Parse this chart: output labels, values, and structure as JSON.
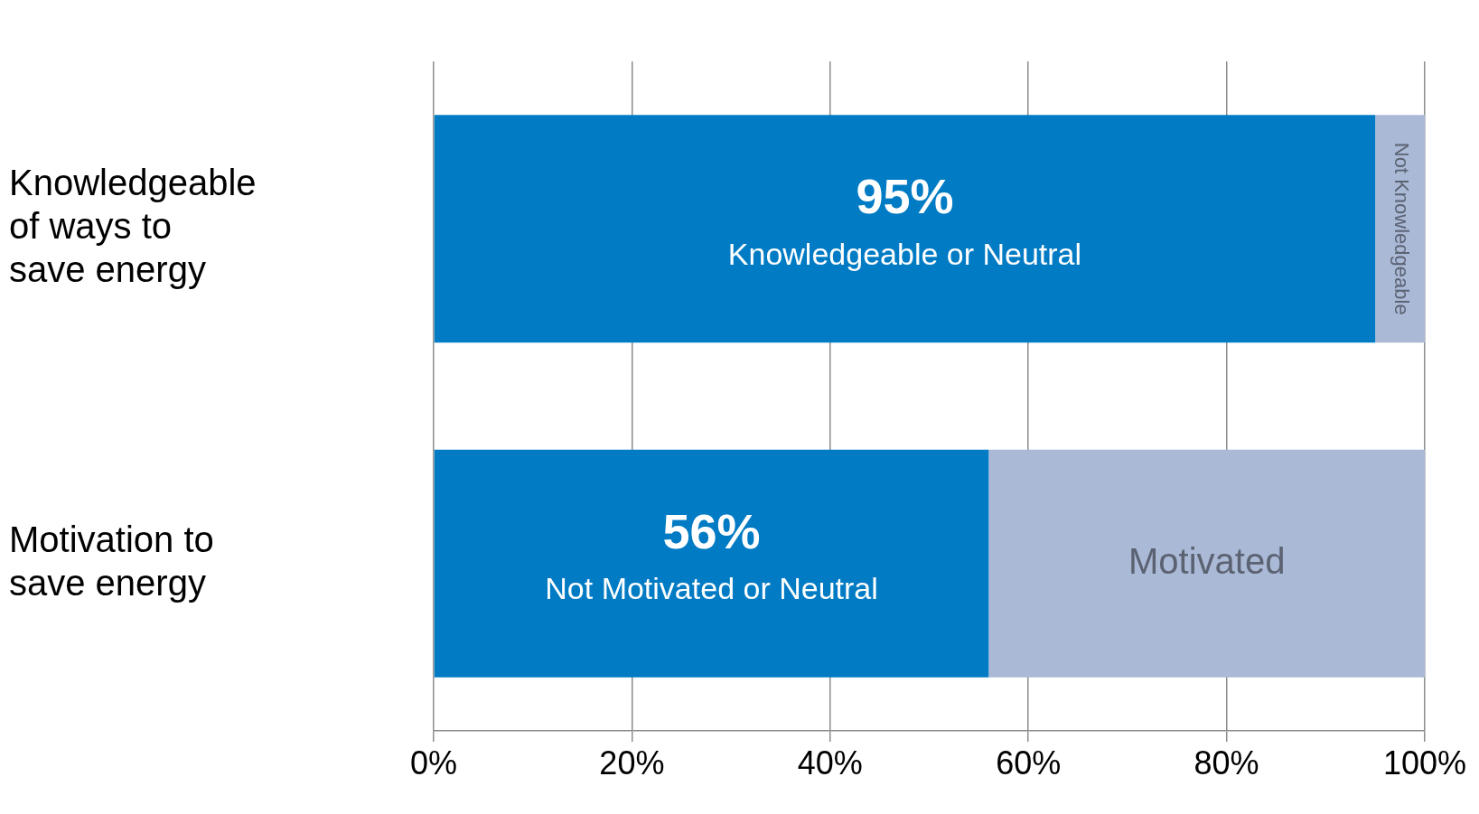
{
  "chart_data": {
    "type": "bar",
    "orientation": "horizontal",
    "stacked": true,
    "categories": [
      "Knowledgeable of ways to save energy",
      "Motivation to save energy"
    ],
    "series": [
      {
        "color": "#007bc4",
        "values": [
          95,
          56
        ],
        "value_labels": [
          "95%",
          "56%"
        ]
      },
      {
        "color": "#aab9d6",
        "values": [
          5,
          44
        ]
      }
    ],
    "annotations": [
      "Knowledgeable or Neutral",
      "Not Knowledgeable",
      "Not Motivated or Neutral",
      "Motivated"
    ],
    "xlim": [
      0,
      100
    ],
    "xticks": [
      {
        "value": 0,
        "label": "0%"
      },
      {
        "value": 20,
        "label": "20%"
      },
      {
        "value": 40,
        "label": "40%"
      },
      {
        "value": 60,
        "label": "60%"
      },
      {
        "value": 80,
        "label": "80%"
      },
      {
        "value": 100,
        "label": "100%"
      }
    ],
    "grid": "x",
    "legend": false
  }
}
